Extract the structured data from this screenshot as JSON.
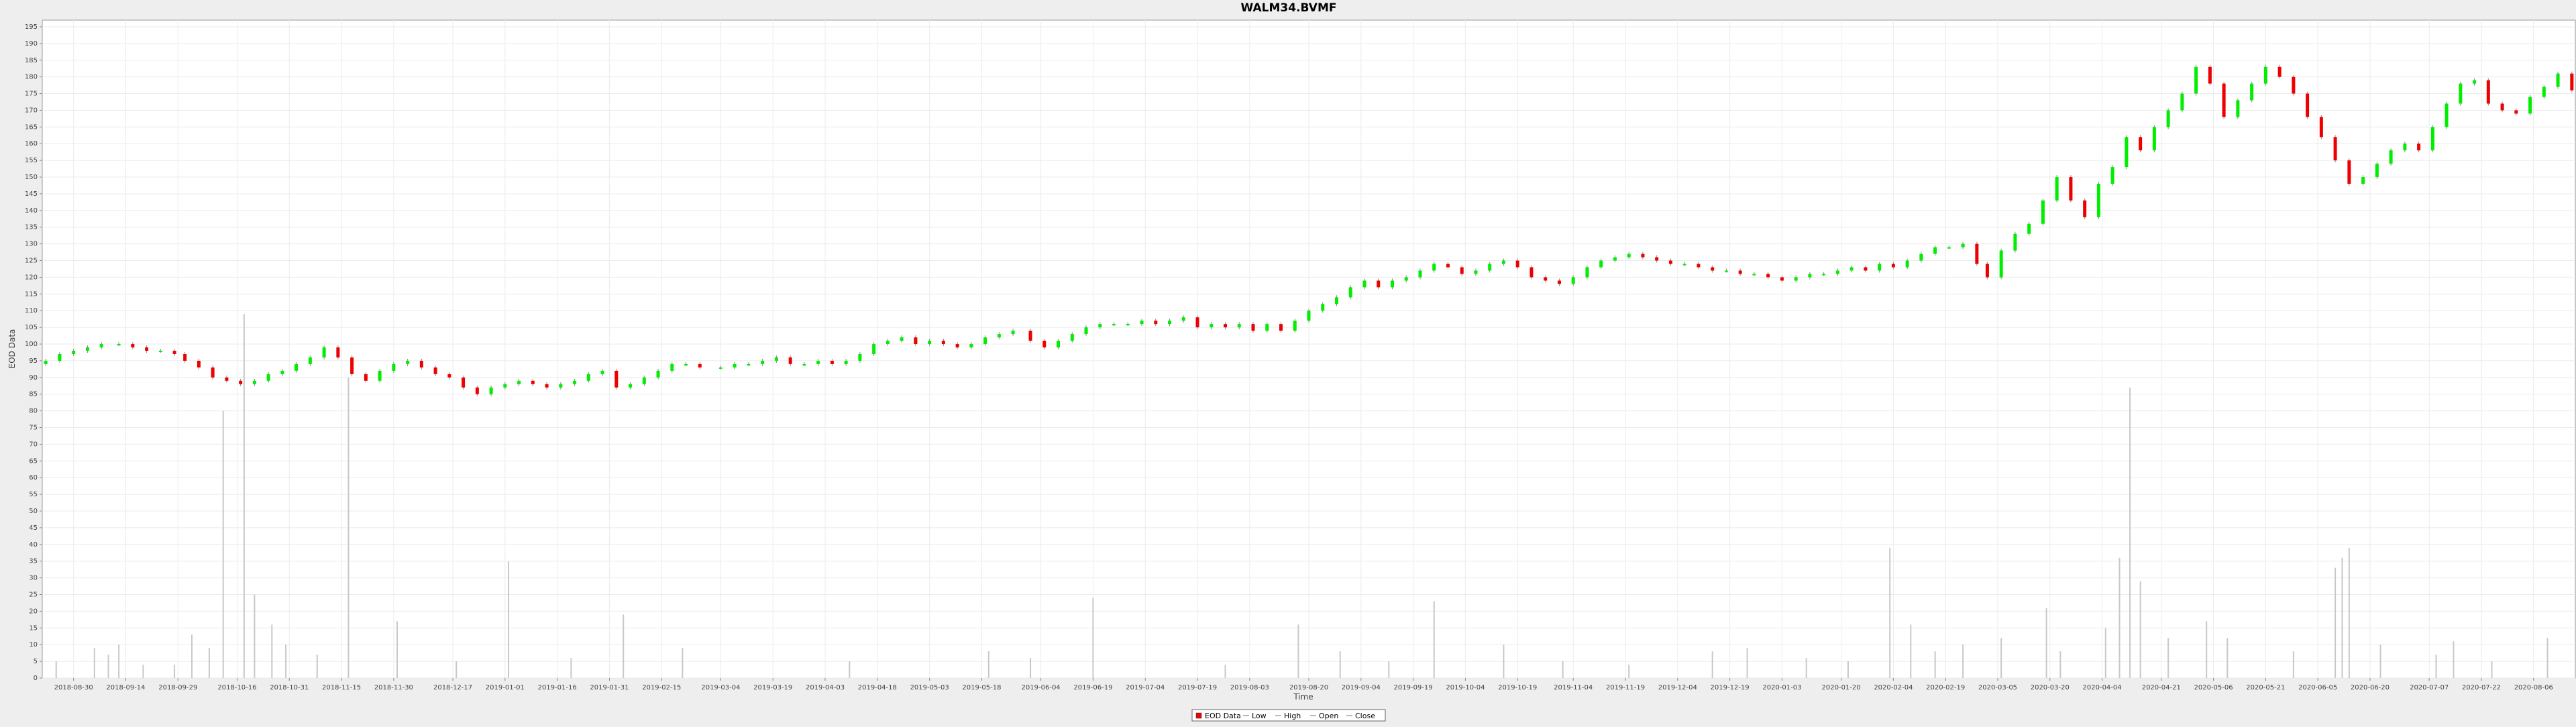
{
  "chart_data": {
    "type": "candlestick",
    "title": "WALM34.BVMF",
    "xlabel": "Time",
    "ylabel": "EOD Data",
    "ylim": [
      0,
      197
    ],
    "y_ticks": [
      0,
      5,
      10,
      15,
      20,
      25,
      30,
      35,
      40,
      45,
      50,
      55,
      60,
      65,
      70,
      75,
      80,
      85,
      90,
      95,
      100,
      105,
      110,
      115,
      120,
      125,
      130,
      135,
      140,
      145,
      150,
      155,
      160,
      165,
      170,
      175,
      180,
      185,
      190,
      195
    ],
    "x_range": [
      "2018-08-21",
      "2020-08-18"
    ],
    "x_ticks": [
      "2018-08-30",
      "2018-09-14",
      "2018-09-29",
      "2018-10-16",
      "2018-10-31",
      "2018-11-15",
      "2018-11-30",
      "2018-12-17",
      "2019-01-01",
      "2019-01-16",
      "2019-01-31",
      "2019-02-15",
      "2019-03-04",
      "2019-03-19",
      "2019-04-03",
      "2019-04-18",
      "2019-05-03",
      "2019-05-18",
      "2019-06-04",
      "2019-06-19",
      "2019-07-04",
      "2019-07-19",
      "2019-08-03",
      "2019-08-20",
      "2019-09-04",
      "2019-09-19",
      "2019-10-04",
      "2019-10-19",
      "2019-11-04",
      "2019-11-19",
      "2019-12-04",
      "2019-12-19",
      "2020-01-03",
      "2020-01-20",
      "2020-02-04",
      "2020-02-19",
      "2020-03-05",
      "2020-03-20",
      "2020-04-04",
      "2020-04-21",
      "2020-05-06",
      "2020-05-21",
      "2020-06-05",
      "2020-06-20",
      "2020-07-07",
      "2020-07-22",
      "2020-08-06"
    ],
    "grid": true,
    "legend_position": "bottom-center",
    "legend": [
      {
        "label": "EOD Data",
        "marker": "box"
      },
      {
        "label": "Low",
        "marker": "line"
      },
      {
        "label": "High",
        "marker": "line"
      },
      {
        "label": "Open",
        "marker": "line"
      },
      {
        "label": "Close",
        "marker": "line"
      }
    ],
    "colors": {
      "up": "#00ee00",
      "down": "#ee0000",
      "wick": "#888888",
      "volume": "#c8c8c8",
      "grid": "#ebebeb",
      "plot_bg": "#ffffff",
      "page_bg": "#eeeeee"
    },
    "series": [
      {
        "name": "Close",
        "points": [
          [
            "2018-08-22",
            95
          ],
          [
            "2018-08-26",
            97
          ],
          [
            "2018-08-30",
            98
          ],
          [
            "2018-09-03",
            99
          ],
          [
            "2018-09-07",
            100
          ],
          [
            "2018-09-12",
            100
          ],
          [
            "2018-09-16",
            99
          ],
          [
            "2018-09-20",
            98
          ],
          [
            "2018-09-24",
            98
          ],
          [
            "2018-09-28",
            97
          ],
          [
            "2018-10-01",
            95
          ],
          [
            "2018-10-05",
            93
          ],
          [
            "2018-10-09",
            90
          ],
          [
            "2018-10-13",
            89
          ],
          [
            "2018-10-17",
            88
          ],
          [
            "2018-10-21",
            89
          ],
          [
            "2018-10-25",
            91
          ],
          [
            "2018-10-29",
            92
          ],
          [
            "2018-11-02",
            94
          ],
          [
            "2018-11-06",
            96
          ],
          [
            "2018-11-10",
            99
          ],
          [
            "2018-11-14",
            96
          ],
          [
            "2018-11-18",
            91
          ],
          [
            "2018-11-22",
            89
          ],
          [
            "2018-11-26",
            92
          ],
          [
            "2018-11-30",
            94
          ],
          [
            "2018-12-04",
            95
          ],
          [
            "2018-12-08",
            93
          ],
          [
            "2018-12-12",
            91
          ],
          [
            "2018-12-16",
            90
          ],
          [
            "2018-12-20",
            87
          ],
          [
            "2018-12-24",
            85
          ],
          [
            "2018-12-28",
            87
          ],
          [
            "2019-01-01",
            88
          ],
          [
            "2019-01-05",
            89
          ],
          [
            "2019-01-09",
            88
          ],
          [
            "2019-01-13",
            87
          ],
          [
            "2019-01-17",
            88
          ],
          [
            "2019-01-21",
            89
          ],
          [
            "2019-01-25",
            91
          ],
          [
            "2019-01-29",
            92
          ],
          [
            "2019-02-02",
            87
          ],
          [
            "2019-02-06",
            88
          ],
          [
            "2019-02-10",
            90
          ],
          [
            "2019-02-14",
            92
          ],
          [
            "2019-02-18",
            94
          ],
          [
            "2019-02-22",
            94
          ],
          [
            "2019-02-26",
            93
          ],
          [
            "2019-03-04",
            93
          ],
          [
            "2019-03-08",
            94
          ],
          [
            "2019-03-12",
            94
          ],
          [
            "2019-03-16",
            95
          ],
          [
            "2019-03-20",
            96
          ],
          [
            "2019-03-24",
            94
          ],
          [
            "2019-03-28",
            94
          ],
          [
            "2019-04-01",
            95
          ],
          [
            "2019-04-05",
            94
          ],
          [
            "2019-04-09",
            95
          ],
          [
            "2019-04-13",
            97
          ],
          [
            "2019-04-17",
            100
          ],
          [
            "2019-04-21",
            101
          ],
          [
            "2019-04-25",
            102
          ],
          [
            "2019-04-29",
            100
          ],
          [
            "2019-05-03",
            101
          ],
          [
            "2019-05-07",
            100
          ],
          [
            "2019-05-11",
            99
          ],
          [
            "2019-05-15",
            100
          ],
          [
            "2019-05-19",
            102
          ],
          [
            "2019-05-23",
            103
          ],
          [
            "2019-05-27",
            104
          ],
          [
            "2019-06-01",
            101
          ],
          [
            "2019-06-05",
            99
          ],
          [
            "2019-06-09",
            101
          ],
          [
            "2019-06-13",
            103
          ],
          [
            "2019-06-17",
            105
          ],
          [
            "2019-06-21",
            106
          ],
          [
            "2019-06-25",
            106
          ],
          [
            "2019-06-29",
            106
          ],
          [
            "2019-07-03",
            107
          ],
          [
            "2019-07-07",
            106
          ],
          [
            "2019-07-11",
            107
          ],
          [
            "2019-07-15",
            108
          ],
          [
            "2019-07-19",
            105
          ],
          [
            "2019-07-23",
            106
          ],
          [
            "2019-07-27",
            105
          ],
          [
            "2019-07-31",
            106
          ],
          [
            "2019-08-04",
            104
          ],
          [
            "2019-08-08",
            106
          ],
          [
            "2019-08-12",
            104
          ],
          [
            "2019-08-16",
            107
          ],
          [
            "2019-08-20",
            110
          ],
          [
            "2019-08-24",
            112
          ],
          [
            "2019-08-28",
            114
          ],
          [
            "2019-09-01",
            117
          ],
          [
            "2019-09-05",
            119
          ],
          [
            "2019-09-09",
            117
          ],
          [
            "2019-09-13",
            119
          ],
          [
            "2019-09-17",
            120
          ],
          [
            "2019-09-21",
            122
          ],
          [
            "2019-09-25",
            124
          ],
          [
            "2019-09-29",
            123
          ],
          [
            "2019-10-03",
            121
          ],
          [
            "2019-10-07",
            122
          ],
          [
            "2019-10-11",
            124
          ],
          [
            "2019-10-15",
            125
          ],
          [
            "2019-10-19",
            123
          ],
          [
            "2019-10-23",
            120
          ],
          [
            "2019-10-27",
            119
          ],
          [
            "2019-10-31",
            118
          ],
          [
            "2019-11-04",
            120
          ],
          [
            "2019-11-08",
            123
          ],
          [
            "2019-11-12",
            125
          ],
          [
            "2019-11-16",
            126
          ],
          [
            "2019-11-20",
            127
          ],
          [
            "2019-11-24",
            126
          ],
          [
            "2019-11-28",
            125
          ],
          [
            "2019-12-02",
            124
          ],
          [
            "2019-12-06",
            124
          ],
          [
            "2019-12-10",
            123
          ],
          [
            "2019-12-14",
            122
          ],
          [
            "2019-12-18",
            122
          ],
          [
            "2019-12-22",
            121
          ],
          [
            "2019-12-26",
            121
          ],
          [
            "2019-12-30",
            120
          ],
          [
            "2020-01-03",
            119
          ],
          [
            "2020-01-07",
            120
          ],
          [
            "2020-01-11",
            121
          ],
          [
            "2020-01-15",
            121
          ],
          [
            "2020-01-19",
            122
          ],
          [
            "2020-01-23",
            123
          ],
          [
            "2020-01-27",
            122
          ],
          [
            "2020-01-31",
            124
          ],
          [
            "2020-02-04",
            123
          ],
          [
            "2020-02-08",
            125
          ],
          [
            "2020-02-12",
            127
          ],
          [
            "2020-02-16",
            129
          ],
          [
            "2020-02-20",
            129
          ],
          [
            "2020-02-24",
            130
          ],
          [
            "2020-02-28",
            124
          ],
          [
            "2020-03-02",
            120
          ],
          [
            "2020-03-06",
            128
          ],
          [
            "2020-03-10",
            133
          ],
          [
            "2020-03-14",
            136
          ],
          [
            "2020-03-18",
            143
          ],
          [
            "2020-03-22",
            150
          ],
          [
            "2020-03-26",
            143
          ],
          [
            "2020-03-30",
            138
          ],
          [
            "2020-04-03",
            148
          ],
          [
            "2020-04-07",
            153
          ],
          [
            "2020-04-11",
            162
          ],
          [
            "2020-04-15",
            158
          ],
          [
            "2020-04-19",
            165
          ],
          [
            "2020-04-23",
            170
          ],
          [
            "2020-04-27",
            175
          ],
          [
            "2020-05-01",
            183
          ],
          [
            "2020-05-05",
            178
          ],
          [
            "2020-05-09",
            168
          ],
          [
            "2020-05-13",
            173
          ],
          [
            "2020-05-17",
            178
          ],
          [
            "2020-05-21",
            183
          ],
          [
            "2020-05-25",
            180
          ],
          [
            "2020-05-29",
            175
          ],
          [
            "2020-06-02",
            168
          ],
          [
            "2020-06-06",
            162
          ],
          [
            "2020-06-10",
            155
          ],
          [
            "2020-06-14",
            148
          ],
          [
            "2020-06-18",
            150
          ],
          [
            "2020-06-22",
            154
          ],
          [
            "2020-06-26",
            158
          ],
          [
            "2020-06-30",
            160
          ],
          [
            "2020-07-04",
            158
          ],
          [
            "2020-07-08",
            165
          ],
          [
            "2020-07-12",
            172
          ],
          [
            "2020-07-16",
            178
          ],
          [
            "2020-07-20",
            179
          ],
          [
            "2020-07-24",
            172
          ],
          [
            "2020-07-28",
            170
          ],
          [
            "2020-08-01",
            169
          ],
          [
            "2020-08-05",
            174
          ],
          [
            "2020-08-09",
            177
          ],
          [
            "2020-08-13",
            181
          ],
          [
            "2020-08-17",
            176
          ]
        ]
      },
      {
        "name": "Volume",
        "points": [
          [
            "2018-08-25",
            5
          ],
          [
            "2018-09-05",
            9
          ],
          [
            "2018-09-09",
            7
          ],
          [
            "2018-09-12",
            10
          ],
          [
            "2018-09-19",
            4
          ],
          [
            "2018-09-28",
            4
          ],
          [
            "2018-10-03",
            13
          ],
          [
            "2018-10-08",
            9
          ],
          [
            "2018-10-12",
            80
          ],
          [
            "2018-10-18",
            109
          ],
          [
            "2018-10-21",
            25
          ],
          [
            "2018-10-26",
            16
          ],
          [
            "2018-10-30",
            10
          ],
          [
            "2018-11-08",
            7
          ],
          [
            "2018-11-17",
            90
          ],
          [
            "2018-12-01",
            17
          ],
          [
            "2018-12-18",
            5
          ],
          [
            "2019-01-02",
            35
          ],
          [
            "2019-01-20",
            6
          ],
          [
            "2019-02-04",
            19
          ],
          [
            "2019-02-21",
            9
          ],
          [
            "2019-04-10",
            5
          ],
          [
            "2019-05-20",
            8
          ],
          [
            "2019-06-01",
            6
          ],
          [
            "2019-06-19",
            24
          ],
          [
            "2019-07-27",
            4
          ],
          [
            "2019-08-17",
            16
          ],
          [
            "2019-08-29",
            8
          ],
          [
            "2019-09-12",
            5
          ],
          [
            "2019-09-25",
            23
          ],
          [
            "2019-10-15",
            10
          ],
          [
            "2019-11-01",
            5
          ],
          [
            "2019-11-20",
            4
          ],
          [
            "2019-12-14",
            8
          ],
          [
            "2019-12-24",
            9
          ],
          [
            "2020-01-10",
            6
          ],
          [
            "2020-01-22",
            5
          ],
          [
            "2020-02-03",
            39
          ],
          [
            "2020-02-09",
            16
          ],
          [
            "2020-02-16",
            8
          ],
          [
            "2020-02-24",
            10
          ],
          [
            "2020-03-06",
            12
          ],
          [
            "2020-03-19",
            21
          ],
          [
            "2020-03-23",
            8
          ],
          [
            "2020-04-05",
            15
          ],
          [
            "2020-04-09",
            36
          ],
          [
            "2020-04-12",
            87
          ],
          [
            "2020-04-15",
            29
          ],
          [
            "2020-04-23",
            12
          ],
          [
            "2020-05-04",
            17
          ],
          [
            "2020-05-10",
            12
          ],
          [
            "2020-05-29",
            8
          ],
          [
            "2020-06-10",
            33
          ],
          [
            "2020-06-12",
            36
          ],
          [
            "2020-06-14",
            39
          ],
          [
            "2020-06-23",
            10
          ],
          [
            "2020-07-09",
            7
          ],
          [
            "2020-07-14",
            11
          ],
          [
            "2020-07-25",
            5
          ],
          [
            "2020-08-10",
            12
          ]
        ]
      }
    ]
  }
}
